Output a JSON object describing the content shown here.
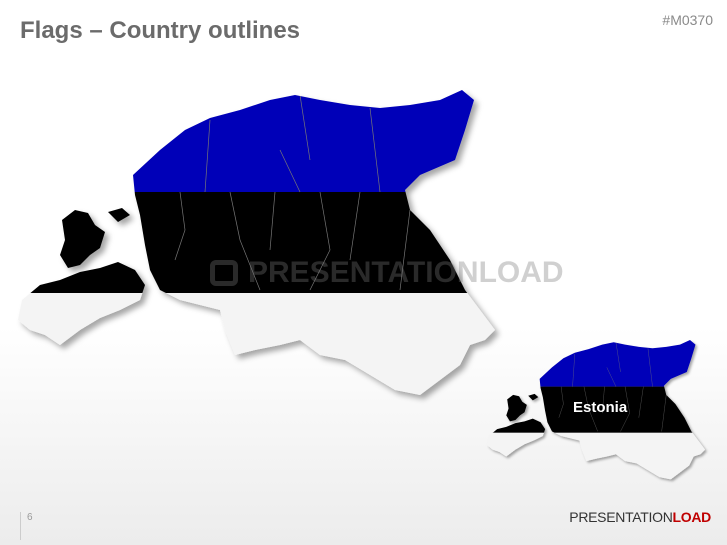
{
  "slide": {
    "title": "Flags – Country outlines",
    "code": "#M0370",
    "page_number": "6"
  },
  "map": {
    "country_label": "Estonia",
    "flag_colors": {
      "top": "#0000b8",
      "middle": "#000000",
      "bottom": "#f4f4f4"
    }
  },
  "watermark": {
    "text": "PRESENTATIONLOAD"
  },
  "logo": {
    "part1": "PRESENTATION",
    "part2": "LOAD",
    "accent": "#c00000"
  }
}
